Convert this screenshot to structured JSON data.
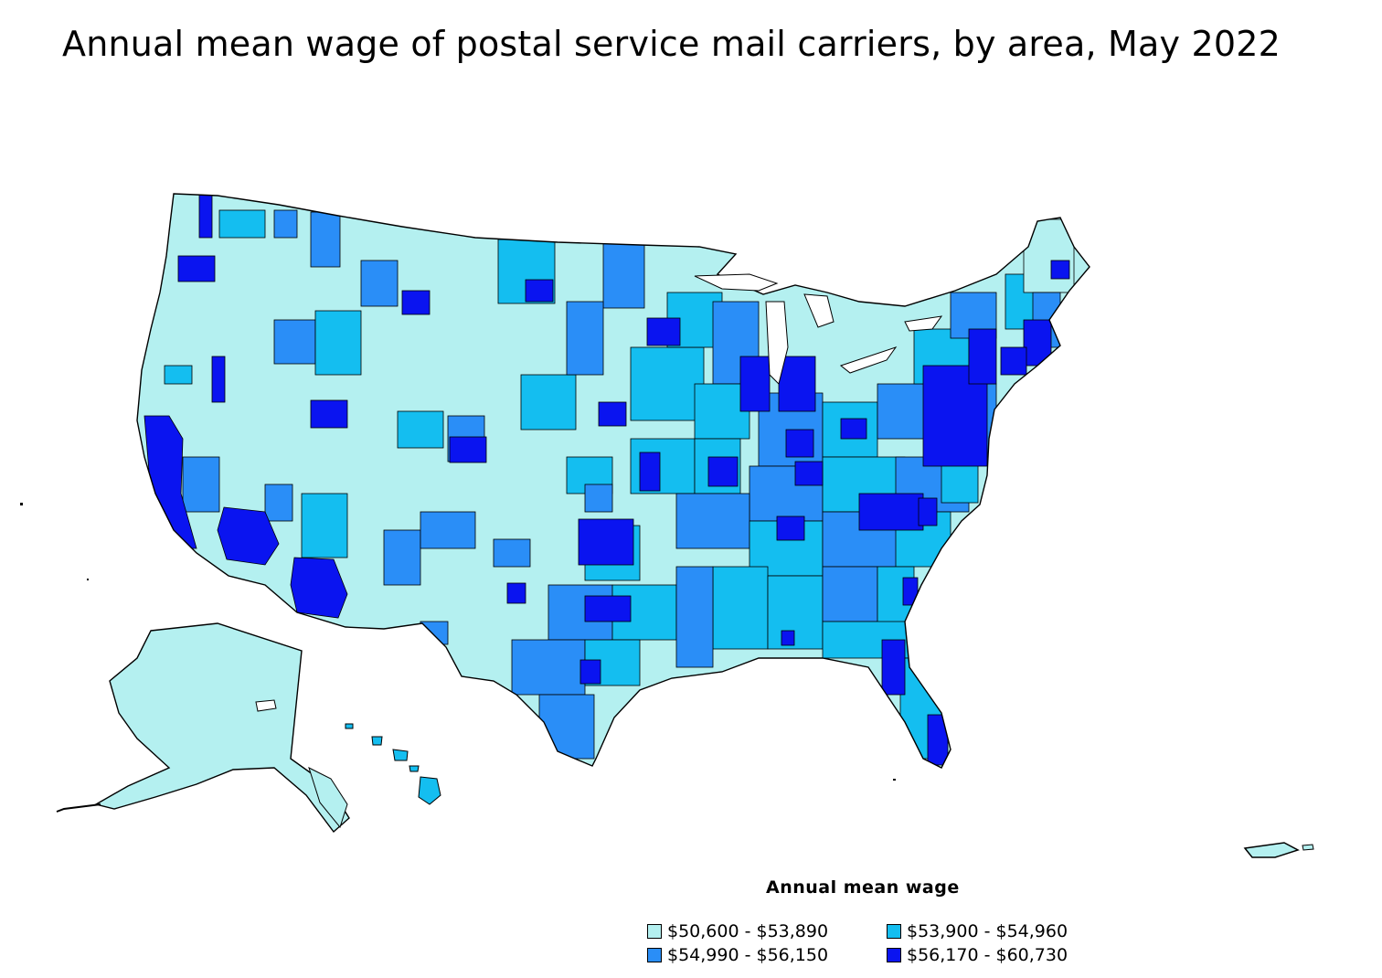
{
  "title": "Annual mean wage of postal service mail carriers, by area, May 2022",
  "legend": {
    "title": "Annual mean wage",
    "items": [
      {
        "label": "$50,600 - $53,890",
        "color": "#b4f0f0"
      },
      {
        "label": "$53,900 - $54,960",
        "color": "#14bef0"
      },
      {
        "label": "$54,990 - $56,150",
        "color": "#2a8ef7"
      },
      {
        "label": "$56,170 - $60,730",
        "color": "#0a14f0"
      }
    ]
  }
}
